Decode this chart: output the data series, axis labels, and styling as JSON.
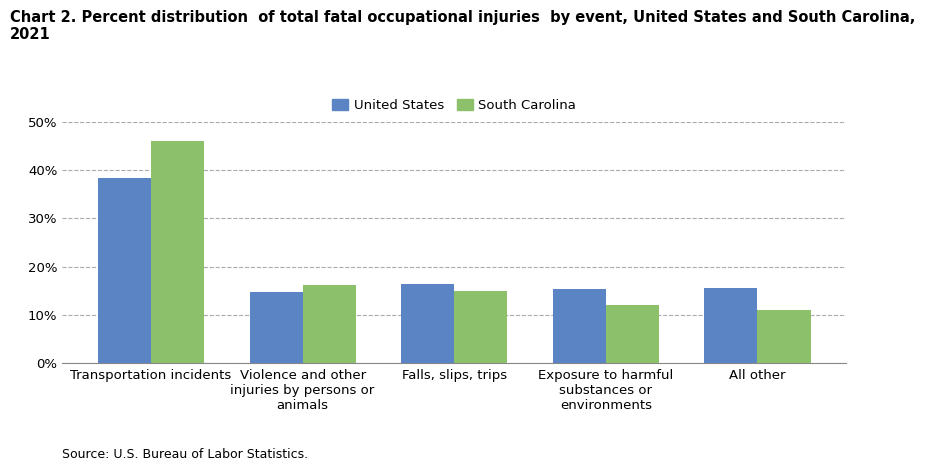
{
  "title_line1": "Chart 2. Percent distribution  of total fatal occupational injuries  by event, United States and South Carolina,",
  "title_line2": "2021",
  "categories": [
    "Transportation incidents",
    "Violence and other\ninjuries by persons or\nanimals",
    "Falls, slips, trips",
    "Exposure to harmful\nsubstances or\nenvironments",
    "All other"
  ],
  "us_values": [
    38.3,
    14.8,
    16.5,
    15.4,
    15.5
  ],
  "sc_values": [
    46.0,
    16.1,
    15.0,
    12.1,
    11.1
  ],
  "us_color": "#5b84c4",
  "sc_color": "#8dc06b",
  "us_label": "United States",
  "sc_label": "South Carolina",
  "ylim": [
    0,
    50
  ],
  "yticks": [
    0,
    10,
    20,
    30,
    40,
    50
  ],
  "ytick_labels": [
    "0%",
    "10%",
    "20%",
    "30%",
    "40%",
    "50%"
  ],
  "source": "Source: U.S. Bureau of Labor Statistics.",
  "bar_width": 0.35,
  "grid_color": "#aaaaaa",
  "background_color": "#ffffff",
  "title_fontsize": 10.5,
  "tick_fontsize": 9.5,
  "legend_fontsize": 9.5,
  "source_fontsize": 9
}
